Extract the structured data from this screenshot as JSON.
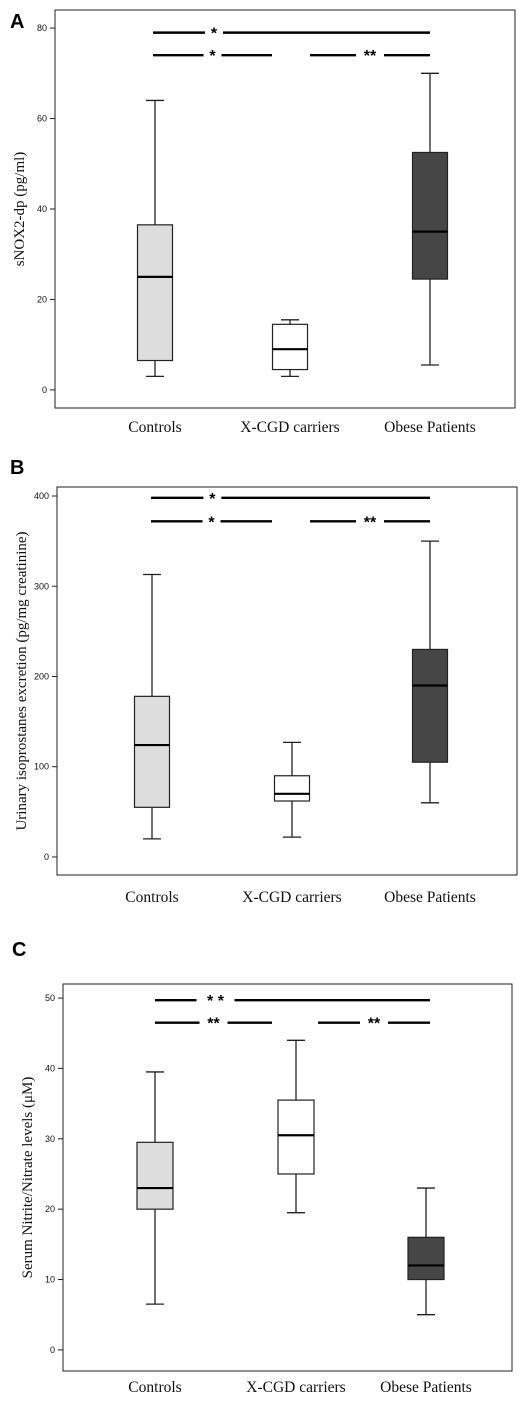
{
  "colors": {
    "controls": "#dddddd",
    "x_cgd": "#ffffff",
    "obese": "#464646",
    "axis": "#222222",
    "text": "#111111",
    "background": "#ffffff"
  },
  "chart_data": [
    {
      "panel_label": "A",
      "type": "box",
      "title": "",
      "xlabel": "",
      "ylabel": "sNOX2-dp (pg/ml)",
      "ylim": [
        -4,
        84
      ],
      "yticks": [
        0,
        20,
        40,
        60,
        80
      ],
      "categories": [
        "Controls",
        "X-CGD carriers",
        "Obese Patients"
      ],
      "boxes": [
        {
          "min": 3,
          "q1": 6.5,
          "median": 25,
          "q3": 36.5,
          "max": 64
        },
        {
          "min": 3,
          "q1": 4.5,
          "median": 9,
          "q3": 14.5,
          "max": 15.5
        },
        {
          "min": 5.5,
          "q1": 24.5,
          "median": 35,
          "q3": 52.5,
          "max": 70
        }
      ],
      "significance": [
        {
          "from": 0,
          "to": 2,
          "label": "*",
          "level": 79
        },
        {
          "from": 0,
          "to": 1,
          "label": "*",
          "level": 74
        },
        {
          "from": 1,
          "to": 2,
          "label": "**",
          "level": 74
        }
      ]
    },
    {
      "panel_label": "B",
      "type": "box",
      "title": "",
      "xlabel": "",
      "ylabel": "Urinary isoprostanes excretion (pg/mg creatinine)",
      "ylim": [
        -20,
        410
      ],
      "yticks": [
        0,
        100,
        200,
        300,
        400
      ],
      "categories": [
        "Controls",
        "X-CGD carriers",
        "Obese Patients"
      ],
      "boxes": [
        {
          "min": 20,
          "q1": 55,
          "median": 124,
          "q3": 178,
          "max": 313
        },
        {
          "min": 22,
          "q1": 62,
          "median": 70,
          "q3": 90,
          "max": 127
        },
        {
          "min": 60,
          "q1": 105,
          "median": 190,
          "q3": 230,
          "max": 350
        }
      ],
      "significance": [
        {
          "from": 0,
          "to": 2,
          "label": "*",
          "level": 398
        },
        {
          "from": 0,
          "to": 1,
          "label": "*",
          "level": 372
        },
        {
          "from": 1,
          "to": 2,
          "label": "**",
          "level": 372
        }
      ]
    },
    {
      "panel_label": "C",
      "type": "box",
      "title": "",
      "xlabel": "",
      "ylabel": "Serum Nitrite/Nitrate levels (μM)",
      "ylim": [
        -3,
        52
      ],
      "yticks": [
        0,
        10,
        20,
        30,
        40,
        50
      ],
      "categories": [
        "Controls",
        "X-CGD carriers",
        "Obese Patients"
      ],
      "boxes": [
        {
          "min": 6.5,
          "q1": 20,
          "median": 23,
          "q3": 29.5,
          "max": 39.5
        },
        {
          "min": 19.5,
          "q1": 25,
          "median": 30.5,
          "q3": 35.5,
          "max": 44
        },
        {
          "min": 5,
          "q1": 10,
          "median": 12,
          "q3": 16,
          "max": 23
        }
      ],
      "significance": [
        {
          "from": 0,
          "to": 2,
          "label": "* *",
          "level": 49.7
        },
        {
          "from": 0,
          "to": 1,
          "label": "**",
          "level": 46.5
        },
        {
          "from": 1,
          "to": 2,
          "label": "**",
          "level": 46.5
        }
      ]
    }
  ]
}
